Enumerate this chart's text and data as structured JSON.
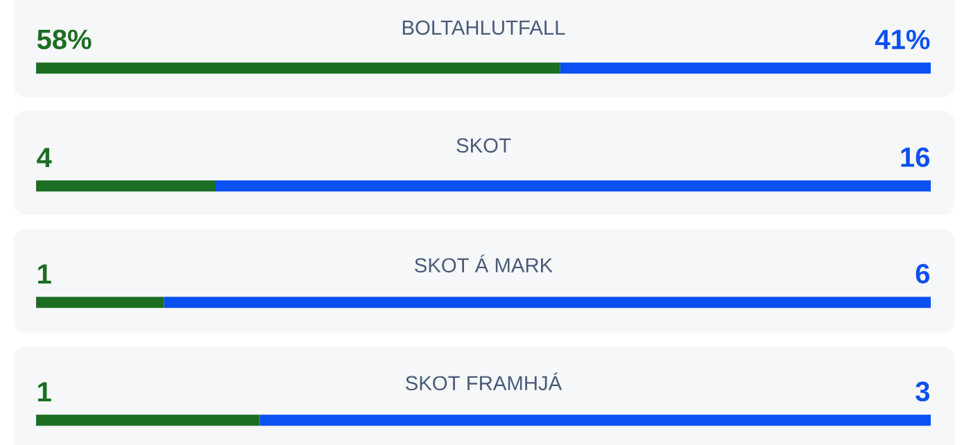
{
  "chart_data": [
    {
      "type": "bar",
      "orientation": "horizontal",
      "stacked": true,
      "title": "BOLTAHLUTFALL",
      "categories": [
        null
      ],
      "series": [
        {
          "color": "#1b6e22",
          "values": [
            58
          ],
          "value_labels": [
            "58%"
          ]
        },
        {
          "color": "#0b50f0",
          "values": [
            41
          ],
          "value_labels": [
            "41%"
          ]
        }
      ]
    },
    {
      "type": "bar",
      "orientation": "horizontal",
      "stacked": true,
      "title": "SKOT",
      "categories": [
        null
      ],
      "series": [
        {
          "color": "#1b6e22",
          "values": [
            4
          ],
          "value_labels": [
            "4"
          ]
        },
        {
          "color": "#0b50f0",
          "values": [
            16
          ],
          "value_labels": [
            "16"
          ]
        }
      ]
    },
    {
      "type": "bar",
      "orientation": "horizontal",
      "stacked": true,
      "title": "SKOT Á MARK",
      "categories": [
        null
      ],
      "series": [
        {
          "color": "#1b6e22",
          "values": [
            1
          ],
          "value_labels": [
            "1"
          ]
        },
        {
          "color": "#0b50f0",
          "values": [
            6
          ],
          "value_labels": [
            "6"
          ]
        }
      ]
    },
    {
      "type": "bar",
      "orientation": "horizontal",
      "stacked": true,
      "title": "SKOT FRAMHJÁ",
      "categories": [
        null
      ],
      "series": [
        {
          "color": "#1b6e22",
          "values": [
            1
          ],
          "value_labels": [
            "1"
          ]
        },
        {
          "color": "#0b50f0",
          "values": [
            3
          ],
          "value_labels": [
            "3"
          ]
        }
      ]
    }
  ]
}
